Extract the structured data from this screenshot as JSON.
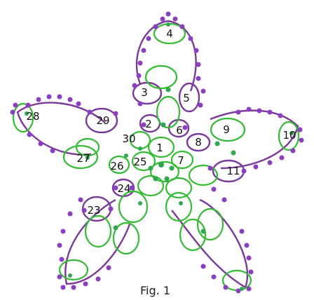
{
  "figure": {
    "caption": "Fig. 1",
    "numbers": [
      "1",
      "2",
      "3",
      "4",
      "5",
      "6",
      "7",
      "8",
      "9",
      "10",
      "11",
      "23",
      "24",
      "25",
      "26",
      "27",
      "28",
      "29",
      "30"
    ],
    "colors": {
      "ring": "#33bb33",
      "chain": "#7a3a9a",
      "picot": "#8a3fc0",
      "join": "#2fa84f"
    }
  }
}
